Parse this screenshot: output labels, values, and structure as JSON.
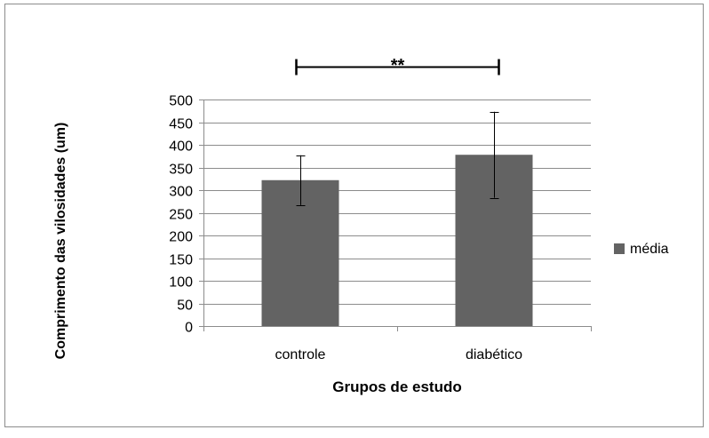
{
  "chart_data": {
    "type": "bar",
    "title": "",
    "xlabel": "Grupos de estudo",
    "ylabel": "Comprimento das vilosidades (um)",
    "categories": [
      "controle",
      "diabético"
    ],
    "series": [
      {
        "name": "média",
        "values": [
          322,
          378
        ],
        "error": [
          55,
          95
        ],
        "color": "#636363"
      }
    ],
    "ylim": [
      0,
      500
    ],
    "yticks": [
      0,
      50,
      100,
      150,
      200,
      250,
      300,
      350,
      400,
      450,
      500
    ],
    "yticks_labels": [
      "0",
      "50",
      "100",
      "150",
      "200",
      "250",
      "300",
      "350",
      "400",
      "450",
      "500"
    ],
    "grid": true,
    "legend": "right",
    "annotation": {
      "text": "**",
      "between": [
        "controle",
        "diabético"
      ]
    }
  }
}
